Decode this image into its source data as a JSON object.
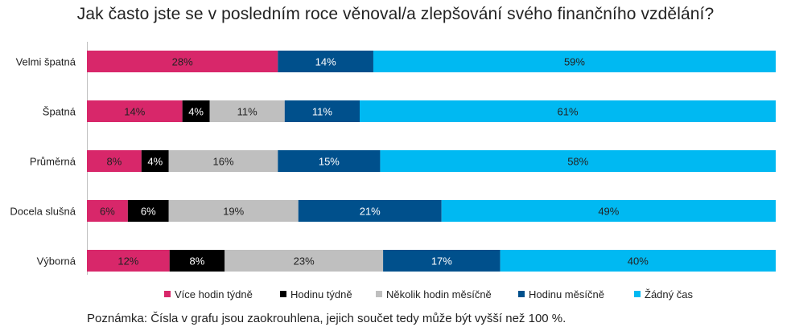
{
  "chart_data": {
    "type": "bar",
    "orientation": "horizontal",
    "stacked": true,
    "title": "Jak často jste se v posledním roce věnoval/a zlepšování svého finančního vzdělání?",
    "categories": [
      "Velmi špatná",
      "Špatná",
      "Průměrná",
      "Docela slušná",
      "Výborná"
    ],
    "series": [
      {
        "name": "Více hodin týdně",
        "color": "#d8276a",
        "label_color": "#222222",
        "values": [
          28,
          14,
          8,
          6,
          12
        ],
        "labels": [
          "28%",
          "14%",
          "8%",
          "6%",
          "12%"
        ]
      },
      {
        "name": "Hodinu týdně",
        "color": "#000000",
        "label_color": "#ffffff",
        "values": [
          0,
          4,
          4,
          6,
          8
        ],
        "labels": [
          "",
          "4%",
          "4%",
          "6%",
          "8%"
        ]
      },
      {
        "name": "Několik hodin měsíčně",
        "color": "#bfbfbf",
        "label_color": "#222222",
        "values": [
          0,
          11,
          16,
          19,
          23
        ],
        "labels": [
          "",
          "11%",
          "16%",
          "19%",
          "23%"
        ]
      },
      {
        "name": "Hodinu měsíčně",
        "color": "#00508c",
        "label_color": "#ffffff",
        "values": [
          14,
          11,
          15,
          21,
          17
        ],
        "labels": [
          "14%",
          "11%",
          "15%",
          "21%",
          "17%"
        ]
      },
      {
        "name": "Žádný čas",
        "color": "#00b9f2",
        "label_color": "#222222",
        "values": [
          59,
          61,
          58,
          49,
          40
        ],
        "labels": [
          "59%",
          "61%",
          "58%",
          "49%",
          "40%"
        ]
      }
    ],
    "legend_position": "bottom",
    "grid": false
  },
  "note": "Poznámka: Čísla v grafu jsou zaokrouhlena, jejich součet tedy může být vyšší než 100 %."
}
